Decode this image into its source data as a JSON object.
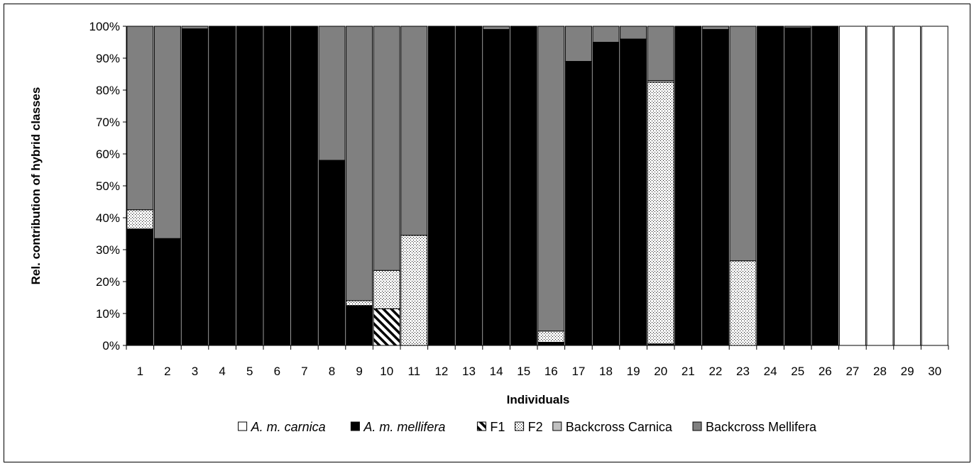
{
  "chart_data": {
    "type": "bar",
    "stacked": true,
    "title": "",
    "xlabel": "Individuals",
    "ylabel": "Rel. contribution of hybrid classes",
    "ylim": [
      0,
      100
    ],
    "yticks": [
      "0%",
      "10%",
      "20%",
      "30%",
      "40%",
      "50%",
      "60%",
      "70%",
      "80%",
      "90%",
      "100%"
    ],
    "categories": [
      "1",
      "2",
      "3",
      "4",
      "5",
      "6",
      "7",
      "8",
      "9",
      "10",
      "11",
      "12",
      "13",
      "14",
      "15",
      "16",
      "17",
      "18",
      "19",
      "20",
      "21",
      "22",
      "23",
      "24",
      "25",
      "26",
      "27",
      "28",
      "29",
      "30"
    ],
    "grid": false,
    "legend_position": "bottom",
    "series": [
      {
        "name": "A. m. carnica",
        "style": "white",
        "values": [
          0,
          0,
          0,
          0,
          0,
          0,
          0,
          0,
          0,
          0,
          0,
          0,
          0,
          0,
          0,
          0,
          0,
          0,
          0,
          0,
          0,
          0,
          0,
          0,
          0,
          0,
          100,
          100,
          100,
          100
        ]
      },
      {
        "name": "A. m. mellifera",
        "style": "black",
        "values": [
          36.5,
          33.5,
          99.2,
          100,
          100,
          100,
          100,
          58,
          12.5,
          0,
          0,
          100,
          100,
          99,
          100,
          1,
          89,
          95,
          96,
          0.5,
          100,
          99,
          0,
          100,
          99.5,
          100,
          0,
          0,
          0,
          0
        ]
      },
      {
        "name": "F1",
        "style": "hatch",
        "values": [
          0,
          0,
          0,
          0,
          0,
          0,
          0,
          0,
          0,
          11.5,
          0,
          0,
          0,
          0,
          0,
          0,
          0,
          0,
          0,
          0,
          0,
          0,
          0,
          0,
          0,
          0,
          0,
          0,
          0,
          0
        ]
      },
      {
        "name": "F2",
        "style": "dots",
        "values": [
          6,
          0,
          0,
          0,
          0,
          0,
          0,
          0,
          1.5,
          12,
          34.5,
          0,
          0,
          0,
          0,
          3.5,
          0,
          0,
          0,
          82,
          0,
          0,
          26.5,
          0,
          0,
          0,
          0,
          0,
          0,
          0
        ]
      },
      {
        "name": "Backcross Carnica",
        "style": "lightgray",
        "values": [
          0,
          0,
          0,
          0,
          0,
          0,
          0,
          0,
          0,
          0,
          0,
          0,
          0,
          0,
          0,
          0,
          0,
          0,
          0,
          0.5,
          0,
          0,
          0,
          0,
          0,
          0,
          0,
          0,
          0,
          0
        ]
      },
      {
        "name": "Backcross Mellifera",
        "style": "gray",
        "values": [
          57.5,
          66.5,
          0.8,
          0,
          0,
          0,
          0,
          42,
          86,
          76.5,
          65.5,
          0,
          0,
          1,
          0,
          95.5,
          11,
          5,
          4,
          17,
          0,
          1,
          73.5,
          0,
          0.5,
          0,
          0,
          0,
          0,
          0
        ]
      }
    ],
    "colors": {
      "black": "#000000",
      "white": "#ffffff",
      "gray": "#808080",
      "lightgray": "#c0c0c0"
    }
  },
  "legend": [
    {
      "label": "A. m. carnica",
      "style": "white",
      "italic": true
    },
    {
      "label": "A. m. mellifera",
      "style": "black",
      "italic": true
    },
    {
      "label": "F1",
      "style": "hatch",
      "italic": false
    },
    {
      "label": "F2",
      "style": "dots",
      "italic": false
    },
    {
      "label": "Backcross Carnica",
      "style": "lightgray",
      "italic": false
    },
    {
      "label": "Backcross Mellifera",
      "style": "gray",
      "italic": false
    }
  ]
}
